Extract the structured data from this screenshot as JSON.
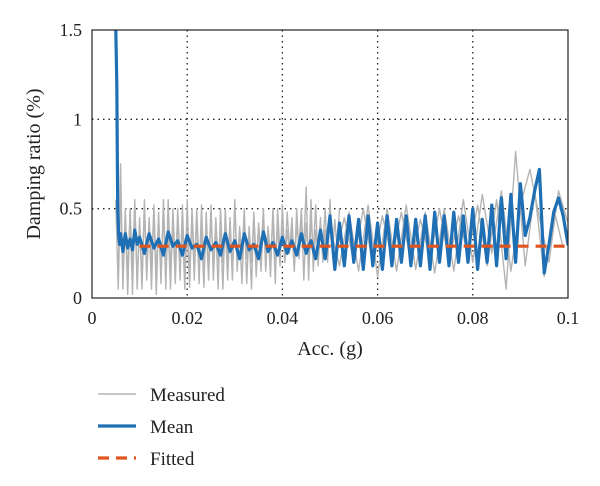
{
  "chart_data": {
    "type": "line",
    "title": "",
    "xlabel": "Acc. (g)",
    "ylabel": "Damping ratio (%)",
    "xlim": [
      0,
      0.1
    ],
    "ylim": [
      0,
      1.5
    ],
    "xticks": [
      0,
      0.02,
      0.04,
      0.06,
      0.08,
      0.1
    ],
    "xtick_labels": [
      "0",
      "0.02",
      "0.04",
      "0.06",
      "0.08",
      "0.1"
    ],
    "yticks": [
      0,
      0.5,
      1,
      1.5
    ],
    "ytick_labels": [
      "0",
      "0.5",
      "1",
      "1.5"
    ],
    "grid": true,
    "legend_position": "below",
    "series": [
      {
        "name": "Measured",
        "color": "#b4b4b4",
        "style": "solid",
        "traces": [
          {
            "x": [
              0.005,
              0.0055,
              0.006,
              0.0065,
              0.007,
              0.0075,
              0.008,
              0.0085,
              0.009,
              0.0095,
              0.01,
              0.0105,
              0.011,
              0.0115,
              0.012,
              0.0125,
              0.013,
              0.0135,
              0.014,
              0.0145,
              0.015,
              0.0155,
              0.016,
              0.0165,
              0.017,
              0.0175,
              0.018,
              0.0185,
              0.019,
              0.0195,
              0.02,
              0.0205,
              0.021,
              0.0215,
              0.022,
              0.0225,
              0.023,
              0.0235,
              0.024,
              0.0245,
              0.025,
              0.0255,
              0.026,
              0.0265,
              0.027,
              0.0275,
              0.028,
              0.0285,
              0.029,
              0.0295,
              0.03,
              0.0305,
              0.031,
              0.0315,
              0.032,
              0.0325,
              0.033,
              0.0335,
              0.034,
              0.0345,
              0.035,
              0.0355,
              0.036,
              0.0365,
              0.037,
              0.0375,
              0.038,
              0.0385,
              0.039,
              0.0395,
              0.04,
              0.0405,
              0.041,
              0.0415,
              0.042,
              0.0425,
              0.043,
              0.0435,
              0.044,
              0.0445,
              0.045,
              0.0455,
              0.046,
              0.0465,
              0.047,
              0.0475,
              0.048,
              0.0485,
              0.049,
              0.0495,
              0.05
            ],
            "y": [
              0.55,
              0.05,
              0.6,
              0.1,
              0.45,
              0.02,
              0.5,
              0.15,
              0.55,
              0.05,
              0.45,
              0.1,
              0.5,
              0.2,
              0.42,
              0.05,
              0.52,
              0.12,
              0.48,
              0.08,
              0.55,
              0.15,
              0.4,
              0.05,
              0.5,
              0.18,
              0.45,
              0.1,
              0.52,
              0.12,
              0.38,
              0.06,
              0.5,
              0.2,
              0.44,
              0.08,
              0.52,
              0.15,
              0.4,
              0.1,
              0.48,
              0.18,
              0.42,
              0.05,
              0.5,
              0.2,
              0.4,
              0.1,
              0.45,
              0.15,
              0.5,
              0.2,
              0.38,
              0.08,
              0.42,
              0.22,
              0.36,
              0.05,
              0.48,
              0.2,
              0.4,
              0.15,
              0.45,
              0.25,
              0.38,
              0.12,
              0.5,
              0.22,
              0.4,
              0.18,
              0.52,
              0.2,
              0.38,
              0.25,
              0.45,
              0.18,
              0.4,
              0.3,
              0.5,
              0.1,
              0.42,
              0.2,
              0.55,
              0.15,
              0.38,
              0.25,
              0.45,
              0.2,
              0.38,
              0.22,
              0.48
            ]
          },
          {
            "x": [
              0.0055,
              0.006,
              0.0065,
              0.007,
              0.0075,
              0.008,
              0.0085,
              0.009,
              0.0095,
              0.01,
              0.0105,
              0.011,
              0.0115,
              0.012,
              0.0125,
              0.013,
              0.0135,
              0.014,
              0.0145,
              0.015,
              0.0155,
              0.016,
              0.0165,
              0.017,
              0.0175,
              0.018,
              0.0185,
              0.019,
              0.0195,
              0.02,
              0.0205,
              0.021,
              0.0215,
              0.022,
              0.0225,
              0.023,
              0.0235,
              0.024,
              0.0245,
              0.025,
              0.0255,
              0.026,
              0.0265,
              0.027,
              0.0275,
              0.028,
              0.0285,
              0.029,
              0.0295,
              0.03,
              0.0305,
              0.031,
              0.0315,
              0.032,
              0.0325,
              0.033,
              0.0335,
              0.034,
              0.0345,
              0.035,
              0.0355,
              0.036,
              0.0365,
              0.037,
              0.0375,
              0.038,
              0.0385,
              0.039,
              0.0395,
              0.04,
              0.0405,
              0.041,
              0.0415,
              0.042,
              0.0425,
              0.043,
              0.0435,
              0.044,
              0.0445,
              0.045,
              0.0455,
              0.046,
              0.0465,
              0.047,
              0.0475,
              0.048,
              0.0485,
              0.049,
              0.0495,
              0.05,
              0.0505,
              0.051,
              0.0515,
              0.052
            ],
            "y": [
              0.1,
              0.75,
              0.05,
              0.5,
              0.12,
              0.48,
              0.02,
              0.52,
              0.1,
              0.42,
              0.05,
              0.55,
              0.1,
              0.45,
              0.18,
              0.5,
              0.02,
              0.44,
              0.12,
              0.5,
              0.05,
              0.55,
              0.15,
              0.42,
              0.08,
              0.5,
              0.2,
              0.4,
              0.05,
              0.55,
              0.12,
              0.46,
              0.1,
              0.5,
              0.2,
              0.38,
              0.06,
              0.48,
              0.14,
              0.52,
              0.1,
              0.45,
              0.2,
              0.4,
              0.05,
              0.5,
              0.18,
              0.42,
              0.1,
              0.55,
              0.15,
              0.4,
              0.22,
              0.5,
              0.08,
              0.4,
              0.2,
              0.46,
              0.12,
              0.42,
              0.25,
              0.5,
              0.15,
              0.4,
              0.22,
              0.45,
              0.08,
              0.5,
              0.25,
              0.4,
              0.2,
              0.48,
              0.28,
              0.38,
              0.15,
              0.5,
              0.22,
              0.42,
              0.3,
              0.62,
              0.1,
              0.45,
              0.25,
              0.52,
              0.18,
              0.4,
              0.3,
              0.5,
              0.2,
              0.55,
              0.25,
              0.44,
              0.28,
              0.5
            ]
          },
          {
            "x": [
              0.05,
              0.052,
              0.054,
              0.056,
              0.058,
              0.06,
              0.062,
              0.064,
              0.066,
              0.068,
              0.07,
              0.072,
              0.074,
              0.076,
              0.078,
              0.08,
              0.082,
              0.084,
              0.086,
              0.088,
              0.09,
              0.092,
              0.094,
              0.096,
              0.098,
              0.1
            ],
            "y": [
              0.4,
              0.18,
              0.48,
              0.15,
              0.52,
              0.12,
              0.5,
              0.15,
              0.52,
              0.16,
              0.48,
              0.14,
              0.5,
              0.15,
              0.55,
              0.2,
              0.58,
              0.25,
              0.6,
              0.15,
              0.52,
              0.72,
              0.45,
              0.2,
              0.6,
              0.42
            ]
          },
          {
            "x": [
              0.051,
              0.053,
              0.055,
              0.057,
              0.059,
              0.061,
              0.063,
              0.065,
              0.067,
              0.069,
              0.071,
              0.073,
              0.075,
              0.077,
              0.079,
              0.081,
              0.083,
              0.085,
              0.087,
              0.089,
              0.091,
              0.093,
              0.095,
              0.097,
              0.099
            ],
            "y": [
              0.22,
              0.45,
              0.2,
              0.5,
              0.18,
              0.46,
              0.22,
              0.48,
              0.2,
              0.44,
              0.22,
              0.5,
              0.2,
              0.46,
              0.24,
              0.52,
              0.18,
              0.55,
              0.05,
              0.82,
              0.18,
              0.6,
              0.12,
              0.5,
              0.28
            ]
          }
        ]
      },
      {
        "name": "Mean",
        "color": "#1f6fb5",
        "style": "solid",
        "x": [
          0.005,
          0.0052,
          0.0054,
          0.0056,
          0.0058,
          0.006,
          0.0065,
          0.007,
          0.0075,
          0.008,
          0.0085,
          0.009,
          0.0095,
          0.01,
          0.011,
          0.012,
          0.013,
          0.014,
          0.015,
          0.016,
          0.017,
          0.018,
          0.019,
          0.02,
          0.021,
          0.022,
          0.023,
          0.024,
          0.025,
          0.026,
          0.027,
          0.028,
          0.029,
          0.03,
          0.031,
          0.032,
          0.033,
          0.034,
          0.035,
          0.036,
          0.037,
          0.038,
          0.039,
          0.04,
          0.041,
          0.042,
          0.043,
          0.044,
          0.045,
          0.046,
          0.047,
          0.048,
          0.049,
          0.05,
          0.051,
          0.052,
          0.053,
          0.054,
          0.055,
          0.056,
          0.057,
          0.058,
          0.059,
          0.06,
          0.061,
          0.062,
          0.063,
          0.064,
          0.065,
          0.066,
          0.067,
          0.068,
          0.069,
          0.07,
          0.071,
          0.072,
          0.073,
          0.074,
          0.075,
          0.076,
          0.077,
          0.078,
          0.079,
          0.08,
          0.081,
          0.082,
          0.083,
          0.084,
          0.085,
          0.086,
          0.087,
          0.088,
          0.089,
          0.09,
          0.091,
          0.092,
          0.093,
          0.094,
          0.095,
          0.096,
          0.097,
          0.098,
          0.099,
          0.1
        ],
        "y": [
          1.5,
          1.2,
          0.5,
          0.35,
          0.3,
          0.36,
          0.26,
          0.36,
          0.28,
          0.33,
          0.27,
          0.38,
          0.3,
          0.34,
          0.25,
          0.36,
          0.28,
          0.33,
          0.24,
          0.37,
          0.29,
          0.32,
          0.24,
          0.35,
          0.28,
          0.3,
          0.22,
          0.34,
          0.27,
          0.31,
          0.24,
          0.36,
          0.26,
          0.32,
          0.22,
          0.36,
          0.27,
          0.3,
          0.22,
          0.37,
          0.26,
          0.31,
          0.24,
          0.34,
          0.25,
          0.32,
          0.24,
          0.36,
          0.25,
          0.32,
          0.22,
          0.38,
          0.22,
          0.46,
          0.16,
          0.42,
          0.18,
          0.46,
          0.2,
          0.44,
          0.16,
          0.46,
          0.18,
          0.42,
          0.16,
          0.46,
          0.18,
          0.44,
          0.2,
          0.46,
          0.18,
          0.44,
          0.18,
          0.46,
          0.16,
          0.48,
          0.2,
          0.46,
          0.18,
          0.48,
          0.2,
          0.46,
          0.2,
          0.5,
          0.16,
          0.44,
          0.2,
          0.52,
          0.18,
          0.56,
          0.22,
          0.58,
          0.2,
          0.64,
          0.35,
          0.45,
          0.6,
          0.72,
          0.14,
          0.3,
          0.48,
          0.56,
          0.46,
          0.3
        ],
        "width": 3.2
      },
      {
        "name": "Fitted",
        "color": "#e0541e",
        "style": "dashed",
        "x": [
          0.01,
          0.1
        ],
        "y": [
          0.29,
          0.29
        ]
      }
    ],
    "legend": [
      {
        "label": "Measured",
        "color": "#b4b4b4",
        "style": "solid"
      },
      {
        "label": "Mean",
        "color": "#1f6fb5",
        "style": "solid"
      },
      {
        "label": "Fitted",
        "color": "#e0541e",
        "style": "dashed"
      }
    ]
  }
}
